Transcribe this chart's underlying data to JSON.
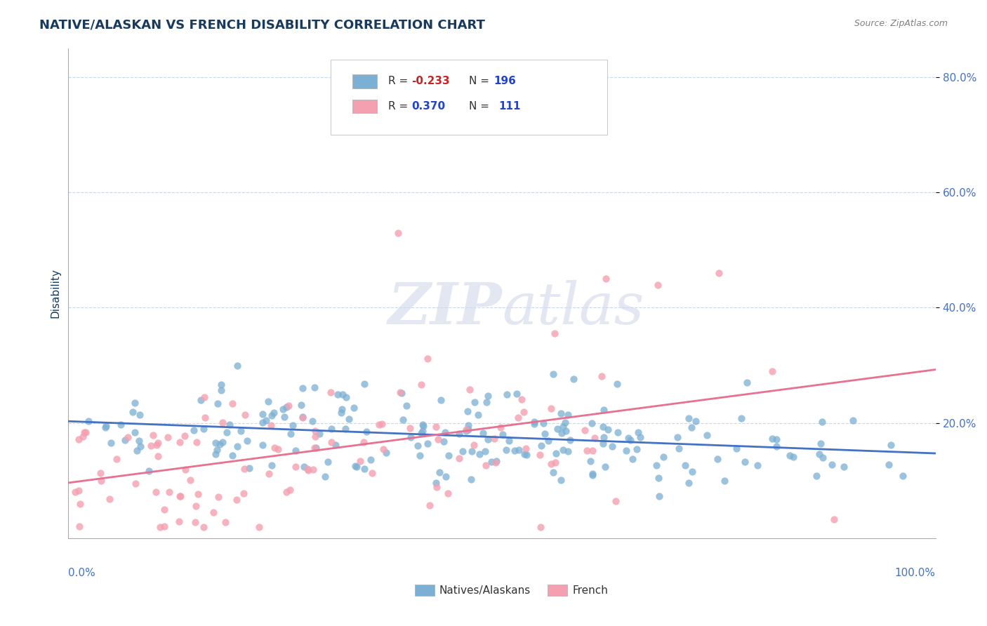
{
  "title": "NATIVE/ALASKAN VS FRENCH DISABILITY CORRELATION CHART",
  "source_text": "Source: ZipAtlas.com",
  "ylabel": "Disability",
  "blue_color": "#7bafd4",
  "pink_color": "#f4a0b0",
  "blue_line_color": "#4472c4",
  "pink_line_color": "#e87090",
  "title_color": "#1a3a5c",
  "axis_label_color": "#4472c4",
  "r_neg_color": "#cc2222",
  "r_pos_color": "#2244cc",
  "n_color": "#2244cc",
  "blue_R": -0.233,
  "blue_N": 196,
  "pink_R": 0.37,
  "pink_N": 111,
  "xlim": [
    0.0,
    1.0
  ],
  "ylim": [
    0.0,
    0.85
  ],
  "seed_blue": 42,
  "seed_pink": 7
}
